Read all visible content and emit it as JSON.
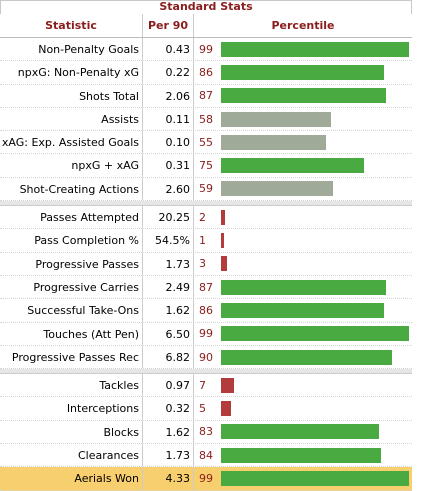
{
  "caption": "Standard Stats",
  "headers": {
    "statistic": "Statistic",
    "per90": "Per 90",
    "percentile": "Percentile"
  },
  "colors": {
    "high": "#4aaa42",
    "mid": "#a0aa98",
    "low": "#b23b3b",
    "highlight_row": "#f8cf6e"
  },
  "groups": [
    [
      {
        "stat": "Non-Penalty Goals",
        "per90": "0.43",
        "percentile": 99,
        "tier": "high"
      },
      {
        "stat": "npxG: Non-Penalty xG",
        "per90": "0.22",
        "percentile": 86,
        "tier": "high"
      },
      {
        "stat": "Shots Total",
        "per90": "2.06",
        "percentile": 87,
        "tier": "high"
      },
      {
        "stat": "Assists",
        "per90": "0.11",
        "percentile": 58,
        "tier": "mid"
      },
      {
        "stat": "xAG: Exp. Assisted Goals",
        "per90": "0.10",
        "percentile": 55,
        "tier": "mid"
      },
      {
        "stat": "npxG + xAG",
        "per90": "0.31",
        "percentile": 75,
        "tier": "high"
      },
      {
        "stat": "Shot-Creating Actions",
        "per90": "2.60",
        "percentile": 59,
        "tier": "mid"
      }
    ],
    [
      {
        "stat": "Passes Attempted",
        "per90": "20.25",
        "percentile": 2,
        "tier": "low"
      },
      {
        "stat": "Pass Completion %",
        "per90": "54.5%",
        "percentile": 1,
        "tier": "low"
      },
      {
        "stat": "Progressive Passes",
        "per90": "1.73",
        "percentile": 3,
        "tier": "low"
      },
      {
        "stat": "Progressive Carries",
        "per90": "2.49",
        "percentile": 87,
        "tier": "high"
      },
      {
        "stat": "Successful Take-Ons",
        "per90": "1.62",
        "percentile": 86,
        "tier": "high"
      },
      {
        "stat": "Touches (Att Pen)",
        "per90": "6.50",
        "percentile": 99,
        "tier": "high"
      },
      {
        "stat": "Progressive Passes Rec",
        "per90": "6.82",
        "percentile": 90,
        "tier": "high"
      }
    ],
    [
      {
        "stat": "Tackles",
        "per90": "0.97",
        "percentile": 7,
        "tier": "low"
      },
      {
        "stat": "Interceptions",
        "per90": "0.32",
        "percentile": 5,
        "tier": "low"
      },
      {
        "stat": "Blocks",
        "per90": "1.62",
        "percentile": 83,
        "tier": "high"
      },
      {
        "stat": "Clearances",
        "per90": "1.73",
        "percentile": 84,
        "tier": "high"
      },
      {
        "stat": "Aerials Won",
        "per90": "4.33",
        "percentile": 99,
        "tier": "high",
        "highlighted": true
      }
    ]
  ]
}
